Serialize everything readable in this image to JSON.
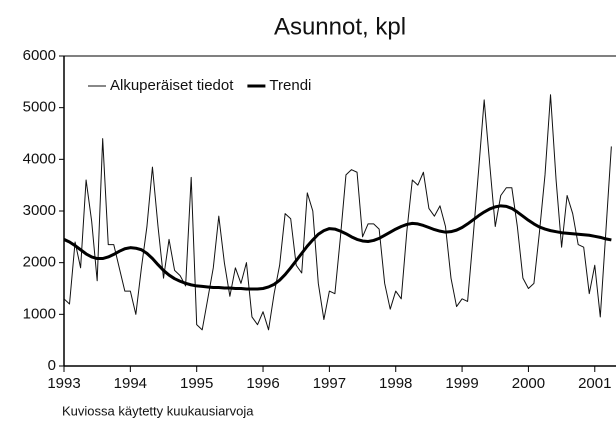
{
  "chart_data": {
    "type": "line",
    "title": "Asunnot, kpl",
    "footnote": "Kuviossa käytetty kuukausiarvoja",
    "x": [
      1993,
      1993.083,
      1993.167,
      1993.25,
      1993.333,
      1993.417,
      1993.5,
      1993.583,
      1993.667,
      1993.75,
      1993.833,
      1993.917,
      1994,
      1994.083,
      1994.167,
      1994.25,
      1994.333,
      1994.417,
      1994.5,
      1994.583,
      1994.667,
      1994.75,
      1994.833,
      1994.917,
      1995,
      1995.083,
      1995.167,
      1995.25,
      1995.333,
      1995.417,
      1995.5,
      1995.583,
      1995.667,
      1995.75,
      1995.833,
      1995.917,
      1996,
      1996.083,
      1996.167,
      1996.25,
      1996.333,
      1996.417,
      1996.5,
      1996.583,
      1996.667,
      1996.75,
      1996.833,
      1996.917,
      1997,
      1997.083,
      1997.167,
      1997.25,
      1997.333,
      1997.417,
      1997.5,
      1997.583,
      1997.667,
      1997.75,
      1997.833,
      1997.917,
      1998,
      1998.083,
      1998.167,
      1998.25,
      1998.333,
      1998.417,
      1998.5,
      1998.583,
      1998.667,
      1998.75,
      1998.833,
      1998.917,
      1999,
      1999.083,
      1999.167,
      1999.25,
      1999.333,
      1999.417,
      1999.5,
      1999.583,
      1999.667,
      1999.75,
      1999.833,
      1999.917,
      2000,
      2000.083,
      2000.167,
      2000.25,
      2000.333,
      2000.417,
      2000.5,
      2000.583,
      2000.667,
      2000.75,
      2000.833,
      2000.917,
      2001,
      2001.083,
      2001.167,
      2001.25
    ],
    "series": [
      {
        "name": "Alkuperäiset tiedot",
        "color": "#111111",
        "width": 1,
        "values": [
          1300,
          1200,
          2400,
          1900,
          3600,
          2800,
          1650,
          4400,
          2350,
          2350,
          1900,
          1450,
          1450,
          1000,
          1900,
          2700,
          3850,
          2700,
          1700,
          2450,
          1850,
          1750,
          1550,
          3650,
          800,
          700,
          1300,
          1900,
          2900,
          2000,
          1350,
          1900,
          1600,
          2000,
          950,
          800,
          1050,
          700,
          1400,
          1950,
          2950,
          2850,
          1950,
          1800,
          3350,
          3000,
          1600,
          900,
          1450,
          1400,
          2500,
          3700,
          3800,
          3750,
          2500,
          2750,
          2750,
          2650,
          1600,
          1100,
          1450,
          1300,
          2600,
          3600,
          3500,
          3750,
          3050,
          2900,
          3100,
          2700,
          1700,
          1150,
          1300,
          1250,
          2500,
          3800,
          5150,
          3900,
          2700,
          3300,
          3450,
          3450,
          2700,
          1700,
          1500,
          1600,
          2600,
          3700,
          5250,
          3600,
          2300,
          3300,
          2950,
          2350,
          2300,
          1400,
          1950,
          950,
          2600,
          4250
        ]
      },
      {
        "name": "Trendi",
        "color": "#000000",
        "width": 3,
        "values": [
          2450,
          2400,
          2330,
          2250,
          2170,
          2110,
          2080,
          2080,
          2110,
          2160,
          2220,
          2270,
          2290,
          2280,
          2250,
          2180,
          2080,
          1960,
          1850,
          1760,
          1690,
          1640,
          1600,
          1570,
          1550,
          1540,
          1530,
          1520,
          1520,
          1510,
          1510,
          1500,
          1500,
          1490,
          1490,
          1490,
          1500,
          1530,
          1580,
          1660,
          1770,
          1900,
          2040,
          2180,
          2320,
          2440,
          2550,
          2620,
          2660,
          2650,
          2610,
          2560,
          2500,
          2450,
          2420,
          2410,
          2430,
          2470,
          2530,
          2590,
          2650,
          2700,
          2740,
          2760,
          2750,
          2720,
          2680,
          2640,
          2610,
          2590,
          2600,
          2630,
          2680,
          2750,
          2830,
          2910,
          2980,
          3040,
          3080,
          3100,
          3090,
          3050,
          2980,
          2900,
          2820,
          2750,
          2690,
          2650,
          2620,
          2600,
          2580,
          2570,
          2560,
          2550,
          2540,
          2530,
          2510,
          2490,
          2460,
          2440
        ]
      }
    ],
    "xlim": [
      1993,
      2001.32
    ],
    "xticks": [
      1993,
      1994,
      1995,
      1996,
      1997,
      1998,
      1999,
      2000,
      2001
    ],
    "ylim": [
      0,
      6000
    ],
    "yticks": [
      0,
      1000,
      2000,
      3000,
      4000,
      5000,
      6000
    ],
    "grid": false,
    "legend": "upper left"
  }
}
